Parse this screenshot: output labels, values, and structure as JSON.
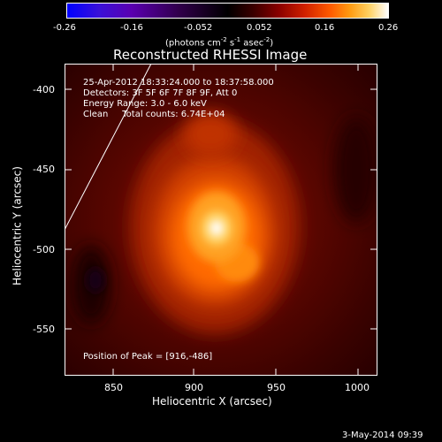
{
  "colorbar": {
    "ticks": [
      "-0.26",
      "-0.16",
      "-0.052",
      "0.052",
      "0.16",
      "0.26"
    ],
    "unit_prefix": "(photons cm",
    "unit_exp1": "-2",
    "unit_mid1": " s",
    "unit_exp2": "-1",
    "unit_mid2": " asec",
    "unit_exp3": "-2",
    "unit_suffix": ")"
  },
  "title": "Reconstructed RHESSI Image",
  "annotations": {
    "time": "25-Apr-2012 18:33:24.000 to 18:37:58.000",
    "detectors": "Detectors: 3F 5F 6F 7F 8F 9F, Att 0",
    "energy": "Energy Range: 3.0 - 6.0 keV",
    "clean": "Clean     Total counts: 6.74E+04",
    "peak": "Position of Peak = [916,-486]"
  },
  "axes": {
    "xlabel": "Heliocentric X (arcsec)",
    "ylabel": "Heliocentric Y (arcsec)",
    "xticks": [
      "850",
      "900",
      "950",
      "1000"
    ],
    "yticks": [
      "-400",
      "-450",
      "-500",
      "-550"
    ]
  },
  "chart_data": {
    "type": "heatmap",
    "title": "Reconstructed RHESSI Image",
    "xlabel": "Heliocentric X (arcsec)",
    "ylabel": "Heliocentric Y (arcsec)",
    "xlim": [
      820,
      1012
    ],
    "ylim": [
      -578,
      -386
    ],
    "colorbar_range": [
      -0.26,
      0.26
    ],
    "peak": [
      916,
      -486
    ]
  },
  "footer": {
    "date": "3-May-2014 09:39"
  }
}
